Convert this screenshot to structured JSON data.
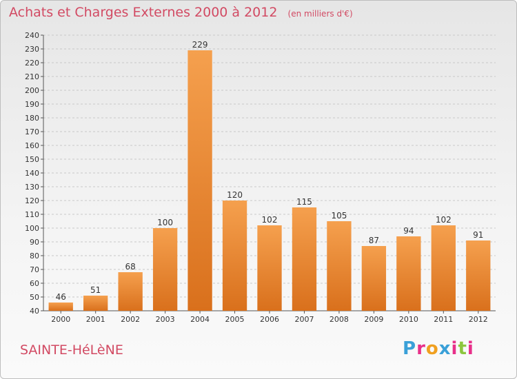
{
  "header": {
    "title": "Achats et Charges Externes 2000 à 2012",
    "subtitle": "(en milliers d'€)"
  },
  "footer": {
    "commune": "SAINTE-HéLèNE",
    "logo_text": "Proxiti",
    "logo_letters": [
      {
        "char": "P",
        "color": "#3aa0d8"
      },
      {
        "char": "r",
        "color": "#e8308a"
      },
      {
        "char": "o",
        "color": "#f0a020"
      },
      {
        "char": "x",
        "color": "#3aa0d8"
      },
      {
        "char": "i",
        "color": "#e8308a"
      },
      {
        "char": "t",
        "color": "#8cc63e"
      },
      {
        "char": "i",
        "color": "#e8308a"
      }
    ]
  },
  "colors": {
    "bar_light": "#f5a04e",
    "bar_dark": "#d9701c",
    "title": "#d24a63"
  },
  "chart_data": {
    "type": "bar",
    "categories": [
      "2000",
      "2001",
      "2002",
      "2003",
      "2004",
      "2005",
      "2006",
      "2007",
      "2008",
      "2009",
      "2010",
      "2011",
      "2012"
    ],
    "values": [
      46,
      51,
      68,
      100,
      229,
      120,
      102,
      115,
      105,
      87,
      94,
      102,
      91
    ],
    "ylim": [
      40,
      240
    ],
    "yticks": [
      40,
      50,
      60,
      70,
      80,
      90,
      100,
      110,
      120,
      130,
      140,
      150,
      160,
      170,
      180,
      190,
      200,
      210,
      220,
      230,
      240
    ],
    "grid": true,
    "data_labels": true
  }
}
